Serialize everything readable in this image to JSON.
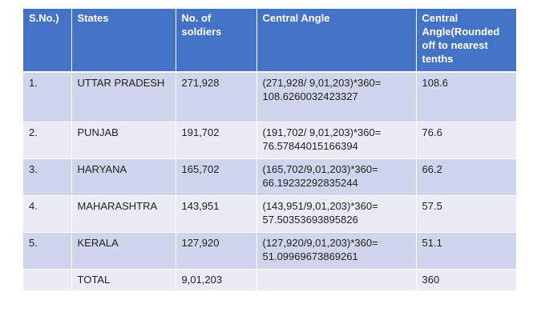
{
  "table": {
    "headers": [
      "S.No.)",
      "States",
      "No. of soldiers",
      "Central Angle",
      "Central Angle(Rounded off to nearest tenths"
    ],
    "rows": [
      {
        "sno": "1.",
        "state": "UTTAR PRADESH",
        "soldiers": "271,928",
        "angle": "(271,928/ 9,01,203)*360= 108.6260032423327",
        "rounded": "108.6"
      },
      {
        "sno": "2.",
        "state": "PUNJAB",
        "soldiers": "191,702",
        "angle": "(191,702/ 9,01,203)*360= 76.57844015166394",
        "rounded": "76.6"
      },
      {
        "sno": "3.",
        "state": "HARYANA",
        "soldiers": "165,702",
        "angle": "(165,702/9,01,203)*360= 66.19232292835244",
        "rounded": "66.2"
      },
      {
        "sno": "4.",
        "state": "MAHARASHTRA",
        "soldiers": "143,951",
        "angle": "(143,951/9,01,203)*360= 57.50353693895826",
        "rounded": "57.5"
      },
      {
        "sno": "5.",
        "state": "KERALA",
        "soldiers": "127,920",
        "angle": "(127,920/9,01,203)*360= 51.09969673869261",
        "rounded": "51.1"
      }
    ],
    "total": {
      "sno": "",
      "state": "TOTAL",
      "soldiers": "9,01,203",
      "angle": "",
      "rounded": "360"
    }
  }
}
